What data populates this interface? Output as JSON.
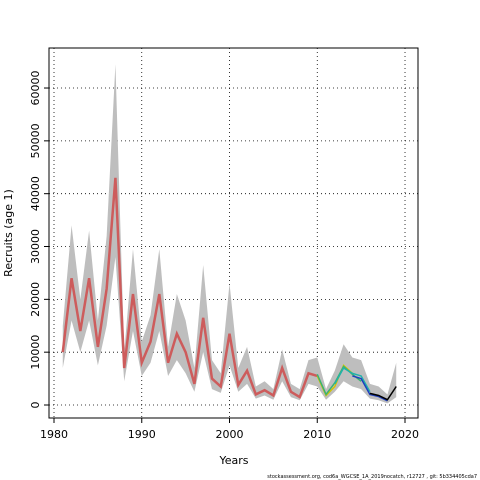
{
  "chart_data": {
    "type": "line",
    "x_label": "Years",
    "y_label": "Recruits (age 1)",
    "footnote": "stockassessment.org, cod6a_WGCSE_1A_2019nocatch, r12727 , git: 5b334405cda7",
    "x": [
      1981,
      1982,
      1983,
      1984,
      1985,
      1986,
      1987,
      1988,
      1989,
      1990,
      1991,
      1992,
      1993,
      1994,
      1995,
      1996,
      1997,
      1998,
      1999,
      2000,
      2001,
      2002,
      2003,
      2004,
      2005,
      2006,
      2007,
      2008,
      2009,
      2010,
      2011,
      2012,
      2013,
      2014,
      2015,
      2016,
      2017,
      2018,
      2019
    ],
    "band_color": "#bebebe",
    "band_upper": [
      15000,
      34000,
      20000,
      33000,
      16000,
      32000,
      64500,
      10000,
      29500,
      12000,
      17000,
      29500,
      11000,
      21000,
      16000,
      7000,
      26500,
      8500,
      6000,
      23000,
      7000,
      11000,
      3500,
      4500,
      3000,
      10500,
      4000,
      3000,
      8500,
      9000,
      3000,
      6500,
      11500,
      9000,
      8500,
      4000,
      3500,
      2000,
      8000
    ],
    "band_lower": [
      7000,
      16000,
      10000,
      16000,
      7500,
      15000,
      28000,
      4500,
      14000,
      5500,
      8000,
      14000,
      5500,
      8500,
      6000,
      2500,
      10000,
      3000,
      2300,
      7500,
      2500,
      4000,
      1200,
      1800,
      1000,
      4500,
      1500,
      900,
      4000,
      3500,
      1000,
      2500,
      4500,
      3500,
      3000,
      1200,
      900,
      300,
      1500
    ],
    "series": [
      {
        "color": "#cd5c5c",
        "values": [
          10000,
          24000,
          14000,
          24000,
          11000,
          22000,
          43000,
          7000,
          21000,
          8000,
          12000,
          21000,
          8000,
          13500,
          10000,
          4000,
          16500,
          5000,
          3500,
          13500,
          3800,
          6500,
          2000,
          2800,
          1800,
          7000,
          2500,
          1500,
          6000,
          5500,
          null,
          null,
          null,
          null,
          null,
          null,
          null,
          null,
          null
        ]
      },
      {
        "color": "#d4c600",
        "values": [
          null,
          null,
          null,
          null,
          null,
          null,
          null,
          null,
          null,
          null,
          null,
          null,
          null,
          null,
          null,
          null,
          null,
          null,
          null,
          null,
          null,
          null,
          null,
          null,
          null,
          null,
          null,
          null,
          null,
          5500,
          1800,
          3500,
          7500,
          6000,
          null,
          null,
          null,
          null,
          null
        ]
      },
      {
        "color": "#3cb371",
        "values": [
          null,
          null,
          null,
          null,
          null,
          null,
          null,
          null,
          null,
          null,
          null,
          null,
          null,
          null,
          null,
          null,
          null,
          null,
          null,
          null,
          null,
          null,
          null,
          null,
          null,
          null,
          null,
          null,
          null,
          5800,
          2000,
          4200,
          7300,
          5800,
          4500,
          null,
          null,
          null,
          null
        ]
      },
      {
        "color": "#20b2aa",
        "values": [
          null,
          null,
          null,
          null,
          null,
          null,
          null,
          null,
          null,
          null,
          null,
          null,
          null,
          null,
          null,
          null,
          null,
          null,
          null,
          null,
          null,
          null,
          null,
          null,
          null,
          null,
          null,
          null,
          null,
          null,
          null,
          4000,
          7000,
          6000,
          5500,
          2500,
          null,
          null,
          null
        ]
      },
      {
        "color": "#1f3fbf",
        "values": [
          null,
          null,
          null,
          null,
          null,
          null,
          null,
          null,
          null,
          null,
          null,
          null,
          null,
          null,
          null,
          null,
          null,
          null,
          null,
          null,
          null,
          null,
          null,
          null,
          null,
          null,
          null,
          null,
          null,
          null,
          null,
          null,
          null,
          5500,
          5000,
          2000,
          1600,
          800,
          null
        ]
      },
      {
        "color": "#000000",
        "values": [
          null,
          null,
          null,
          null,
          null,
          null,
          null,
          null,
          null,
          null,
          null,
          null,
          null,
          null,
          null,
          null,
          null,
          null,
          null,
          null,
          null,
          null,
          null,
          null,
          null,
          null,
          null,
          null,
          null,
          null,
          null,
          null,
          null,
          null,
          null,
          2200,
          1800,
          1000,
          3500
        ]
      }
    ],
    "xlim": [
      1979.43,
      2021.48
    ],
    "xticks": [
      1980,
      1990,
      2000,
      2010,
      2020
    ],
    "ylim": [
      -2460,
      67575
    ],
    "yticks": [
      0,
      10000,
      20000,
      30000,
      40000,
      50000,
      60000
    ],
    "grid": true
  }
}
